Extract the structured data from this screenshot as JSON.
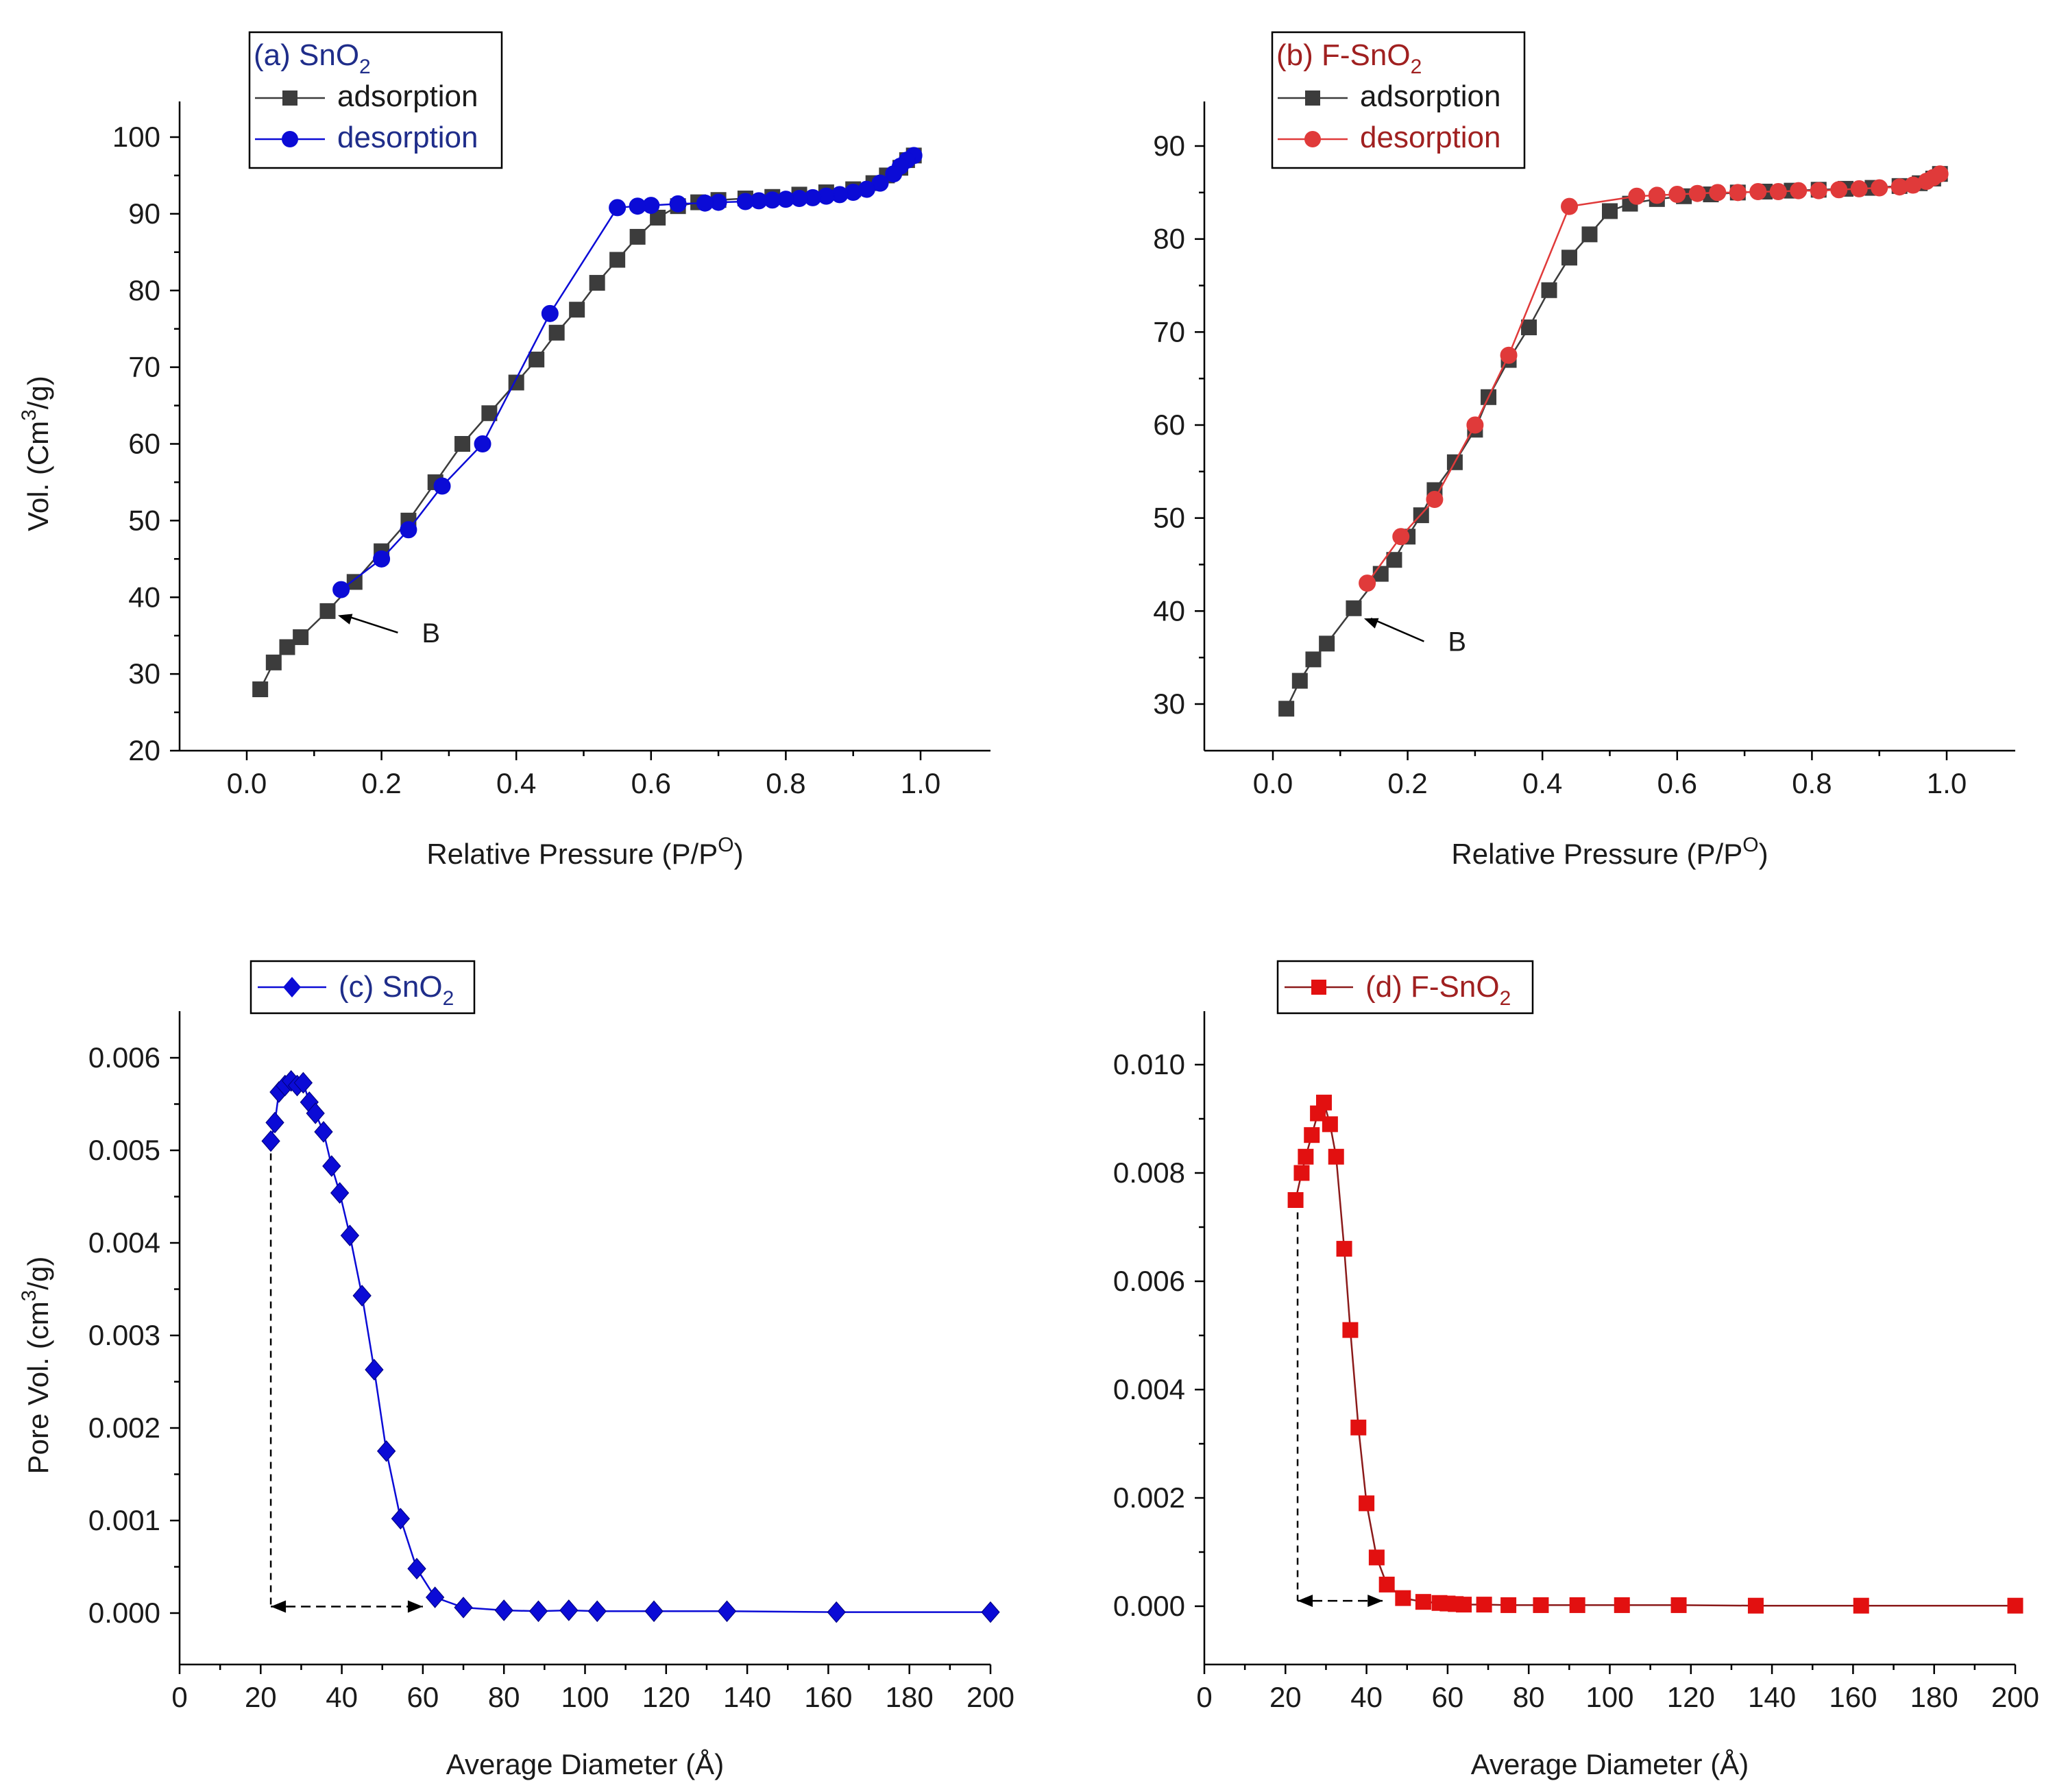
{
  "chart_data": [
    {
      "id": "a",
      "type": "line",
      "title": "(a) SnO2",
      "legend_title_parts": [
        "(a) SnO",
        "2"
      ],
      "xlabel": "Relative Pressure (P/P0)",
      "xlabel_parts": [
        "Relative  Pressure (P/P",
        "O",
        ")"
      ],
      "ylabel": "Vol. (Cm3/g)",
      "ylabel_parts": [
        "Vol. (Cm",
        "3",
        "/g)"
      ],
      "xlim": [
        -0.1,
        1.1
      ],
      "ylim": [
        20,
        105
      ],
      "xticks": [
        0.0,
        0.2,
        0.4,
        0.6,
        0.8,
        1.0
      ],
      "xtick_labels": [
        "0.0",
        "0.2",
        "0.4",
        "0.6",
        "0.8",
        "1.0"
      ],
      "yticks": [
        20,
        30,
        40,
        50,
        60,
        70,
        80,
        90,
        100
      ],
      "ytick_labels": [
        "20",
        "30",
        "40",
        "50",
        "60",
        "70",
        "80",
        "90",
        "100"
      ],
      "annotation": {
        "text": "B",
        "point": [
          0.12,
          38.0
        ],
        "text_at": [
          0.27,
          34.5
        ]
      },
      "legend_position": "top-left",
      "title_color": "#1f2d8a",
      "series": [
        {
          "name": "adsorption",
          "marker": "square",
          "color": "#3c3c3c",
          "text_color": "#1a1a1a",
          "x": [
            0.02,
            0.04,
            0.06,
            0.08,
            0.12,
            0.16,
            0.2,
            0.24,
            0.28,
            0.32,
            0.36,
            0.4,
            0.43,
            0.46,
            0.49,
            0.52,
            0.55,
            0.58,
            0.61,
            0.64,
            0.67,
            0.7,
            0.74,
            0.78,
            0.82,
            0.86,
            0.9,
            0.93,
            0.95,
            0.97,
            0.98,
            0.99
          ],
          "values": [
            28.0,
            31.5,
            33.5,
            34.8,
            38.2,
            42.0,
            46.0,
            50.0,
            55.0,
            60.0,
            64.0,
            68.0,
            71.0,
            74.5,
            77.5,
            81.0,
            84.0,
            87.0,
            89.5,
            91.0,
            91.5,
            91.8,
            92.0,
            92.2,
            92.5,
            92.8,
            93.2,
            94.0,
            95.0,
            96.0,
            97.0,
            97.6
          ]
        },
        {
          "name": "desorption",
          "marker": "circle",
          "color": "#0b0bd6",
          "text_color": "#1f2d8a",
          "x": [
            0.99,
            0.98,
            0.97,
            0.96,
            0.94,
            0.92,
            0.9,
            0.88,
            0.86,
            0.84,
            0.82,
            0.8,
            0.78,
            0.76,
            0.74,
            0.7,
            0.68,
            0.64,
            0.6,
            0.58,
            0.55,
            0.45,
            0.35,
            0.29,
            0.24,
            0.2,
            0.14
          ],
          "values": [
            97.6,
            97.0,
            96.2,
            95.2,
            94.0,
            93.2,
            92.8,
            92.5,
            92.3,
            92.1,
            92.0,
            91.9,
            91.8,
            91.7,
            91.6,
            91.5,
            91.4,
            91.3,
            91.1,
            91.0,
            90.8,
            77.0,
            60.0,
            54.5,
            48.8,
            45.0,
            41.0
          ]
        }
      ]
    },
    {
      "id": "b",
      "type": "line",
      "title": "(b) F-SnO2",
      "legend_title_parts": [
        "(b) F-SnO",
        "2"
      ],
      "xlabel": "Relative Pressure (P/P0)",
      "xlabel_parts": [
        "Relative  Pressure (P/P",
        "O",
        ")"
      ],
      "ylabel": "",
      "xlim": [
        -0.1,
        1.1
      ],
      "ylim": [
        25,
        95
      ],
      "xticks": [
        0.0,
        0.2,
        0.4,
        0.6,
        0.8,
        1.0
      ],
      "xtick_labels": [
        "0.0",
        "0.2",
        "0.4",
        "0.6",
        "0.8",
        "1.0"
      ],
      "yticks": [
        30,
        40,
        50,
        60,
        70,
        80,
        90
      ],
      "ytick_labels": [
        "30",
        "40",
        "50",
        "60",
        "70",
        "80",
        "90"
      ],
      "annotation": {
        "text": "B",
        "point": [
          0.12,
          39.5
        ],
        "text_at": [
          0.27,
          36.0
        ]
      },
      "legend_position": "top-left",
      "title_color": "#a02020",
      "series": [
        {
          "name": "adsorption",
          "marker": "square",
          "color": "#3c3c3c",
          "text_color": "#1a1a1a",
          "x": [
            0.02,
            0.04,
            0.06,
            0.08,
            0.12,
            0.16,
            0.18,
            0.2,
            0.22,
            0.24,
            0.27,
            0.3,
            0.32,
            0.35,
            0.38,
            0.41,
            0.44,
            0.47,
            0.5,
            0.53,
            0.57,
            0.61,
            0.65,
            0.69,
            0.73,
            0.77,
            0.81,
            0.85,
            0.89,
            0.93,
            0.96,
            0.98,
            0.99
          ],
          "values": [
            29.5,
            32.5,
            34.8,
            36.5,
            40.3,
            44.0,
            45.5,
            48.0,
            50.3,
            53.0,
            56.0,
            59.5,
            63.0,
            67.0,
            70.5,
            74.5,
            78.0,
            80.5,
            83.0,
            83.8,
            84.3,
            84.6,
            84.8,
            85.0,
            85.1,
            85.2,
            85.3,
            85.4,
            85.5,
            85.7,
            86.0,
            86.5,
            87.0
          ]
        },
        {
          "name": "desorption",
          "marker": "circle",
          "color": "#e03a3a",
          "text_color": "#a02020",
          "x": [
            0.99,
            0.98,
            0.97,
            0.95,
            0.93,
            0.9,
            0.87,
            0.84,
            0.81,
            0.78,
            0.75,
            0.72,
            0.69,
            0.66,
            0.63,
            0.6,
            0.57,
            0.54,
            0.44,
            0.35,
            0.3,
            0.24,
            0.19,
            0.14
          ],
          "values": [
            87.0,
            86.6,
            86.2,
            85.8,
            85.6,
            85.5,
            85.4,
            85.3,
            85.2,
            85.2,
            85.1,
            85.1,
            85.0,
            85.0,
            84.9,
            84.8,
            84.7,
            84.6,
            83.5,
            67.5,
            60.0,
            52.0,
            48.0,
            43.0
          ]
        }
      ]
    },
    {
      "id": "c",
      "type": "line",
      "title": "(c) SnO2",
      "legend_title_parts": [
        "(c) SnO",
        "2"
      ],
      "xlabel": "Average Diameter (Å)",
      "ylabel": "Pore Vol. (cm3/g)",
      "ylabel_parts": [
        "Pore Vol. (cm",
        "3",
        "/g)"
      ],
      "xlim": [
        0,
        200
      ],
      "ylim": [
        -0.0005,
        0.0065
      ],
      "xticks": [
        0,
        20,
        40,
        60,
        80,
        100,
        120,
        140,
        160,
        180,
        200
      ],
      "xtick_labels": [
        "0",
        "20",
        "40",
        "60",
        "80",
        "100",
        "120",
        "140",
        "160",
        "180",
        "200"
      ],
      "yticks": [
        0.0,
        0.001,
        0.002,
        0.003,
        0.004,
        0.005,
        0.006
      ],
      "ytick_labels": [
        "0.000",
        "0.001",
        "0.002",
        "0.003",
        "0.004",
        "0.005",
        "0.006"
      ],
      "range_arrow": {
        "x_start": 22.5,
        "x_end": 60,
        "y": 7e-05,
        "top": 0.0051
      },
      "legend_position": "top-left",
      "title_color": "#1f2d8a",
      "series": [
        {
          "name": "(c) SnO2",
          "marker": "diamond",
          "color": "#0b0bd6",
          "x": [
            22.5,
            23.5,
            24.5,
            26,
            27.5,
            29,
            30.5,
            32,
            33.5,
            35.5,
            37.5,
            39.5,
            42,
            45,
            48,
            51,
            54.5,
            58.5,
            63,
            70,
            80,
            88.5,
            96,
            103,
            117,
            135,
            162,
            200
          ],
          "values": [
            0.0051,
            0.0053,
            0.00563,
            0.0057,
            0.00575,
            0.0057,
            0.00573,
            0.00552,
            0.0054,
            0.0052,
            0.00483,
            0.00454,
            0.00408,
            0.00343,
            0.00263,
            0.00175,
            0.00102,
            0.00048,
            0.00017,
            6e-05,
            3e-05,
            2e-05,
            3e-05,
            2e-05,
            2e-05,
            2e-05,
            1e-05,
            1e-05
          ]
        }
      ]
    },
    {
      "id": "d",
      "type": "line",
      "title": "(d) F-SnO2",
      "legend_title_parts": [
        "(d) F-SnO",
        "2"
      ],
      "xlabel": "Average Diameter (Å)",
      "ylabel": "",
      "xlim": [
        0,
        200
      ],
      "ylim": [
        -0.001,
        0.011
      ],
      "xticks": [
        0,
        20,
        40,
        60,
        80,
        100,
        120,
        140,
        160,
        180,
        200
      ],
      "xtick_labels": [
        "0",
        "20",
        "40",
        "60",
        "80",
        "100",
        "120",
        "140",
        "160",
        "180",
        "200"
      ],
      "yticks": [
        0.0,
        0.002,
        0.004,
        0.006,
        0.008,
        0.01
      ],
      "ytick_labels": [
        "0.000",
        "0.002",
        "0.004",
        "0.006",
        "0.008",
        "0.010"
      ],
      "range_arrow": {
        "x_start": 23,
        "x_end": 44,
        "y": 0.0001,
        "top": 0.0075
      },
      "legend_position": "top-left",
      "title_color": "#a02020",
      "series": [
        {
          "name": "(d) F-SnO2",
          "marker": "square",
          "color": "#e21010",
          "line_color": "#8b1a1a",
          "x": [
            22.5,
            24,
            25,
            26.5,
            28,
            29.5,
            31,
            32.5,
            34.5,
            36,
            38,
            40,
            42.5,
            45,
            49,
            54,
            58,
            60,
            62,
            64,
            69,
            75,
            83,
            92,
            103,
            117,
            136,
            162,
            200
          ],
          "values": [
            0.0075,
            0.008,
            0.0083,
            0.0087,
            0.0091,
            0.0093,
            0.0089,
            0.0083,
            0.0066,
            0.0051,
            0.0033,
            0.0019,
            0.0009,
            0.0004,
            0.00015,
            8e-05,
            6e-05,
            5e-05,
            4e-05,
            3e-05,
            3e-05,
            2e-05,
            2e-05,
            2e-05,
            2e-05,
            2e-05,
            1e-05,
            1e-05,
            1e-05
          ]
        }
      ]
    }
  ]
}
